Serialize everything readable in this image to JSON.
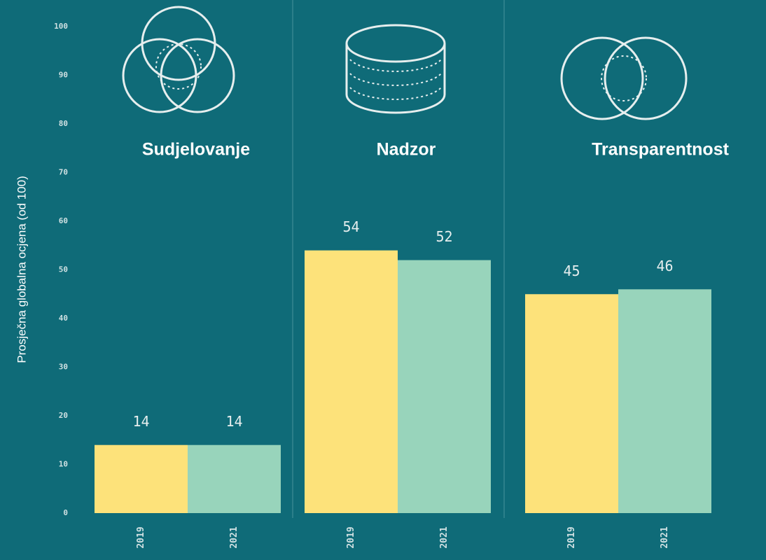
{
  "chart_data": {
    "type": "bar",
    "y_label": "Prosječna globalna ocjena (od 100)",
    "categories": [
      "Sudjelovanje",
      "Nadzor",
      "Transparentnost"
    ],
    "series": [
      {
        "name": "2019",
        "color": "#fde27a",
        "values": [
          14,
          54,
          45
        ]
      },
      {
        "name": "2021",
        "color": "#98d4bb",
        "values": [
          14,
          52,
          46
        ]
      }
    ],
    "ylim": [
      0,
      100
    ],
    "yticks": [
      0,
      10,
      20,
      30,
      40,
      50,
      60,
      70,
      80,
      90,
      100
    ]
  }
}
